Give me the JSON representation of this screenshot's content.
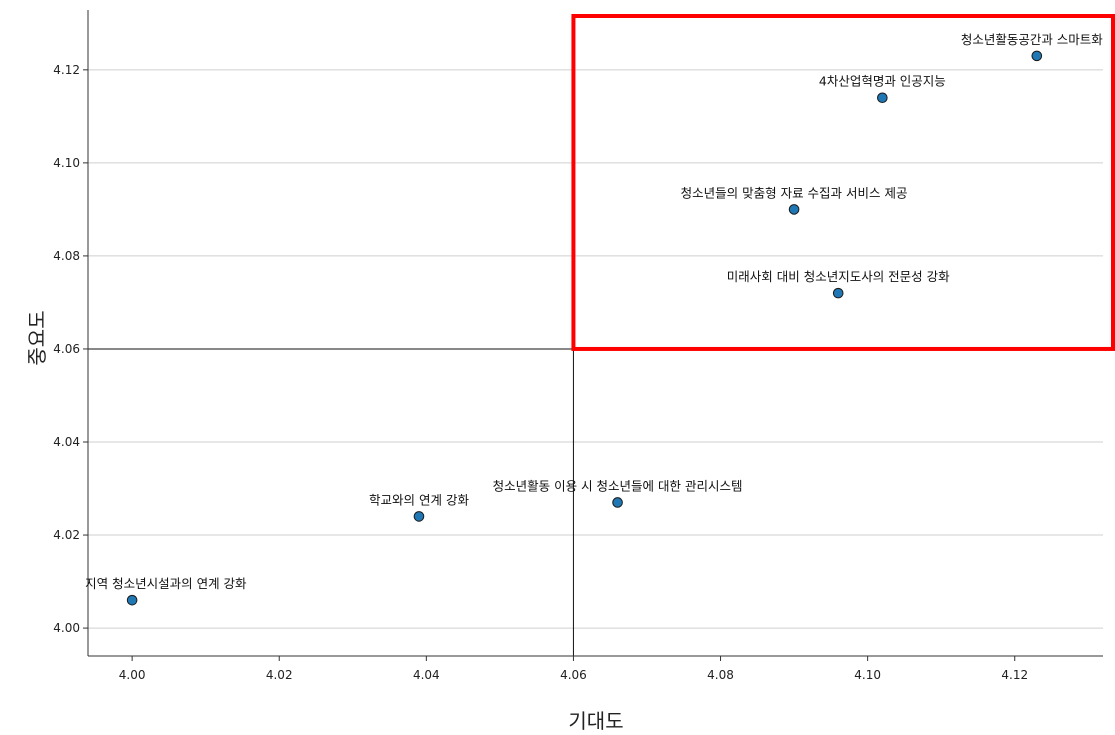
{
  "chart_data": {
    "type": "scatter",
    "title": "",
    "xlabel": "기대도",
    "ylabel": "중요도",
    "xlim": [
      3.994,
      4.132
    ],
    "ylim": [
      3.994,
      4.132
    ],
    "x_ticks": [
      4.0,
      4.02,
      4.04,
      4.06,
      4.08,
      4.1,
      4.12
    ],
    "y_ticks": [
      4.0,
      4.02,
      4.04,
      4.06,
      4.08,
      4.1,
      4.12
    ],
    "x_tick_labels": [
      "4.00",
      "4.02",
      "4.04",
      "4.06",
      "4.08",
      "4.10",
      "4.12"
    ],
    "y_tick_labels": [
      "4.00",
      "4.02",
      "4.04",
      "4.06",
      "4.08",
      "4.10",
      "4.12"
    ],
    "grid": "horizontal",
    "reference_lines": {
      "x": 4.06,
      "y": 4.06
    },
    "highlight_box": {
      "x_from": 4.06,
      "y_from": 4.06,
      "color": "#ff0000"
    },
    "marker_color": "#1f77b4",
    "points": [
      {
        "label": "청소년활동공간과 스마트화",
        "x": 4.123,
        "y": 4.123,
        "label_anchor": "end"
      },
      {
        "label": "4차산업혁명과 인공지능",
        "x": 4.102,
        "y": 4.114,
        "label_anchor": "middle"
      },
      {
        "label": "청소년들의 맞춤형 자료 수집과 서비스 제공",
        "x": 4.09,
        "y": 4.09,
        "label_anchor": "middle"
      },
      {
        "label": "미래사회 대비 청소년지도사의 전문성 강화",
        "x": 4.096,
        "y": 4.072,
        "label_anchor": "middle"
      },
      {
        "label": "청소년활동 이용 시 청소년들에 대한 관리시스템",
        "x": 4.066,
        "y": 4.027,
        "label_anchor": "middle"
      },
      {
        "label": "학교와의 연계 강화",
        "x": 4.039,
        "y": 4.024,
        "label_anchor": "middle"
      },
      {
        "label": "지역 청소년시설과의 연계 강화",
        "x": 4.0,
        "y": 4.006,
        "label_anchor": "start"
      }
    ]
  }
}
